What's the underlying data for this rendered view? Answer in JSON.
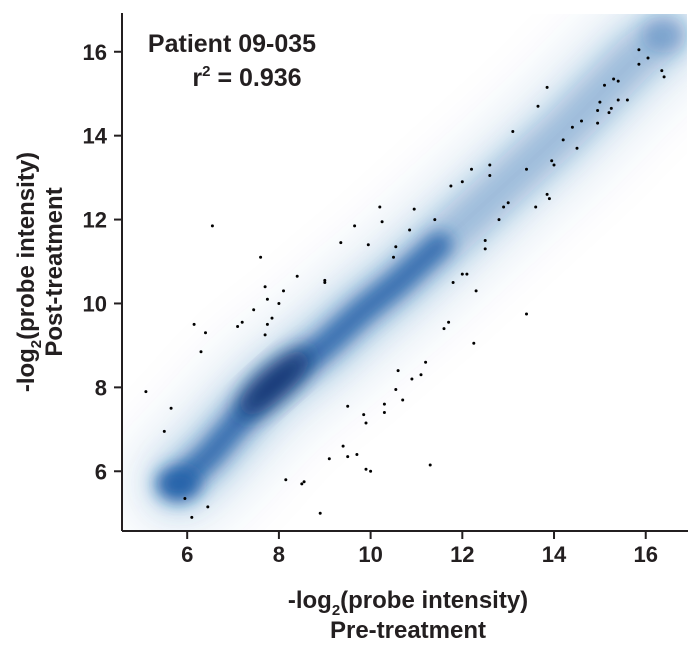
{
  "chart_data": {
    "type": "scatter",
    "title": "",
    "annotation": {
      "line1": "Patient 09-035",
      "r2_prefix": "r",
      "r2_sup": "2",
      "r2_value": " = 0.936"
    },
    "xlabel": {
      "prefix": "-log",
      "sub": "2",
      "suffix": "(probe intensity)",
      "line2": "Pre-treatment"
    },
    "ylabel": {
      "prefix": "-log",
      "sub": "2",
      "suffix": "(probe intensity)",
      "line2": "Post-treatment"
    },
    "xlim": [
      4.6,
      16.9
    ],
    "ylim": [
      4.6,
      16.9
    ],
    "xticks": [
      6,
      8,
      10,
      12,
      14,
      16
    ],
    "yticks": [
      6,
      8,
      10,
      12,
      14,
      16
    ],
    "grid": false,
    "density_color": "#1f5fa8",
    "density_color_dark": "#0a2f6b",
    "point_color": "#000000",
    "density_core": [
      [
        5.8,
        5.7
      ],
      [
        6.5,
        6.4
      ],
      [
        7.2,
        7.3
      ],
      [
        7.8,
        8.0
      ],
      [
        8.4,
        8.5
      ],
      [
        9.0,
        9.0
      ],
      [
        9.8,
        9.8
      ],
      [
        10.6,
        10.5
      ],
      [
        11.5,
        11.4
      ],
      [
        12.4,
        12.3
      ],
      [
        13.3,
        13.2
      ],
      [
        14.2,
        14.1
      ],
      [
        15.0,
        15.0
      ],
      [
        15.8,
        15.9
      ],
      [
        16.4,
        16.4
      ]
    ],
    "outliers": [
      [
        5.1,
        7.9
      ],
      [
        5.5,
        6.95
      ],
      [
        5.65,
        7.5
      ],
      [
        6.1,
        4.9
      ],
      [
        6.15,
        9.5
      ],
      [
        6.3,
        8.85
      ],
      [
        6.4,
        9.3
      ],
      [
        6.45,
        5.15
      ],
      [
        6.55,
        11.85
      ],
      [
        7.1,
        9.45
      ],
      [
        7.2,
        9.55
      ],
      [
        7.45,
        9.85
      ],
      [
        7.6,
        11.1
      ],
      [
        7.7,
        10.4
      ],
      [
        7.75,
        9.5
      ],
      [
        7.7,
        9.25
      ],
      [
        7.85,
        9.65
      ],
      [
        7.75,
        10.1
      ],
      [
        8.0,
        10.0
      ],
      [
        8.1,
        10.3
      ],
      [
        8.4,
        10.65
      ],
      [
        8.5,
        5.7
      ],
      [
        8.55,
        5.75
      ],
      [
        8.9,
        5.0
      ],
      [
        9.0,
        10.5
      ],
      [
        9.0,
        10.55
      ],
      [
        9.35,
        11.45
      ],
      [
        9.4,
        6.6
      ],
      [
        9.5,
        6.35
      ],
      [
        9.7,
        6.4
      ],
      [
        9.65,
        11.85
      ],
      [
        9.9,
        7.15
      ],
      [
        9.95,
        11.4
      ],
      [
        10.2,
        12.3
      ],
      [
        9.9,
        6.05
      ],
      [
        10.0,
        6.0
      ],
      [
        10.25,
        11.95
      ],
      [
        10.3,
        7.6
      ],
      [
        10.5,
        11.1
      ],
      [
        10.55,
        11.35
      ],
      [
        10.55,
        7.95
      ],
      [
        10.7,
        7.7
      ],
      [
        10.85,
        11.75
      ],
      [
        10.95,
        12.25
      ],
      [
        10.9,
        8.2
      ],
      [
        11.1,
        8.3
      ],
      [
        11.2,
        8.6
      ],
      [
        11.6,
        9.4
      ],
      [
        11.7,
        9.55
      ],
      [
        11.3,
        6.15
      ],
      [
        12.0,
        10.7
      ],
      [
        12.1,
        10.7
      ],
      [
        12.3,
        10.3
      ],
      [
        12.25,
        9.05
      ],
      [
        12.5,
        11.5
      ],
      [
        12.5,
        11.3
      ],
      [
        12.6,
        13.3
      ],
      [
        12.9,
        12.3
      ],
      [
        12.6,
        13.05
      ],
      [
        12.8,
        12.0
      ],
      [
        13.1,
        14.1
      ],
      [
        13.4,
        9.75
      ],
      [
        13.4,
        13.2
      ],
      [
        13.6,
        12.3
      ],
      [
        13.65,
        14.7
      ],
      [
        13.85,
        15.15
      ],
      [
        13.85,
        12.6
      ],
      [
        13.9,
        12.5
      ],
      [
        13.95,
        13.4
      ],
      [
        14.0,
        13.3
      ],
      [
        14.2,
        13.9
      ],
      [
        14.5,
        13.7
      ],
      [
        14.6,
        14.35
      ],
      [
        14.95,
        14.3
      ],
      [
        14.95,
        14.6
      ],
      [
        15.1,
        15.2
      ],
      [
        15.2,
        14.55
      ],
      [
        15.25,
        14.65
      ],
      [
        15.3,
        15.35
      ],
      [
        15.4,
        15.3
      ],
      [
        15.4,
        14.85
      ],
      [
        15.6,
        14.85
      ],
      [
        15.85,
        15.7
      ],
      [
        15.85,
        16.05
      ],
      [
        16.05,
        15.85
      ],
      [
        16.35,
        15.55
      ],
      [
        16.4,
        15.4
      ],
      [
        11.8,
        10.5
      ],
      [
        12.2,
        13.2
      ],
      [
        11.4,
        12.0
      ],
      [
        13.0,
        12.4
      ],
      [
        12.0,
        12.9
      ],
      [
        11.75,
        12.8
      ],
      [
        10.3,
        7.4
      ],
      [
        9.5,
        7.55
      ],
      [
        9.85,
        7.35
      ],
      [
        10.6,
        8.4
      ],
      [
        5.95,
        5.35
      ],
      [
        8.15,
        5.8
      ],
      [
        9.1,
        6.3
      ],
      [
        14.4,
        14.2
      ],
      [
        15.0,
        14.8
      ]
    ]
  }
}
